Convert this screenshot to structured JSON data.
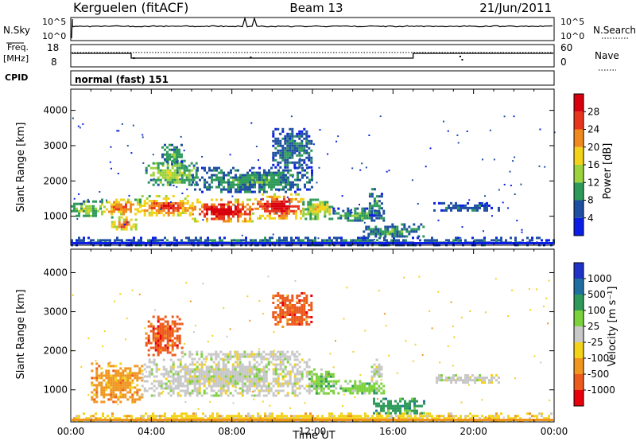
{
  "header": {
    "station": "Kerguelen (fitACF)",
    "beam": "Beam 13",
    "date": "21/Jun/2011"
  },
  "noise_panel": {
    "left_label": "N.Sky",
    "right_label": "N.Search",
    "left_ticks": [
      "10^5",
      "10^0"
    ],
    "right_ticks": [
      "10^5",
      "10^0"
    ]
  },
  "freq_panel": {
    "left_label_1": "Freq.",
    "left_label_2": "[MHz]",
    "right_label": "Nave",
    "left_ticks": [
      "18",
      "8"
    ],
    "right_ticks": [
      "60",
      "0"
    ]
  },
  "cpid_panel": {
    "label": "CPID",
    "text": "normal (fast) 151"
  },
  "chart_data": [
    {
      "type": "heatmap",
      "name": "power-rti",
      "ylabel": "Slant Range [km]",
      "xlabel": "",
      "yticks": [
        1000,
        2000,
        3000,
        4000
      ],
      "ylim": [
        180,
        4600
      ],
      "colorbar_label": "Power [dB]",
      "colorbar_ticks": [
        "4",
        "8",
        "12",
        "16",
        "20",
        "24",
        "28"
      ],
      "colorbar_colors": [
        "#0a1ee6",
        "#1e4fa0",
        "#2e9a5a",
        "#9cd23c",
        "#f3d21a",
        "#f08a1e",
        "#e8361e",
        "#d8000c"
      ],
      "features": [
        {
          "t0": 0.0,
          "t1": 24.0,
          "r0": 180,
          "r1": 420,
          "level": 0.25
        },
        {
          "t0": 0.0,
          "t1": 1.5,
          "r0": 1000,
          "r1": 1450,
          "level": 0.45
        },
        {
          "t0": 1.5,
          "t1": 3.5,
          "r0": 1050,
          "r1": 1500,
          "level": 0.75
        },
        {
          "t0": 2.0,
          "t1": 3.2,
          "r0": 600,
          "r1": 1000,
          "level": 0.7
        },
        {
          "t0": 3.5,
          "t1": 6.0,
          "r0": 1000,
          "r1": 1600,
          "level": 0.8
        },
        {
          "t0": 6.0,
          "t1": 9.0,
          "r0": 850,
          "r1": 1500,
          "level": 0.95
        },
        {
          "t0": 9.0,
          "t1": 11.5,
          "r0": 950,
          "r1": 1650,
          "level": 0.9
        },
        {
          "t0": 11.5,
          "t1": 13.0,
          "r0": 950,
          "r1": 1500,
          "level": 0.55
        },
        {
          "t0": 13.0,
          "t1": 15.5,
          "r0": 850,
          "r1": 1250,
          "level": 0.35
        },
        {
          "t0": 3.7,
          "t1": 6.2,
          "r0": 1900,
          "r1": 2600,
          "level": 0.45
        },
        {
          "t0": 4.5,
          "t1": 5.5,
          "r0": 2500,
          "r1": 3050,
          "level": 0.35
        },
        {
          "t0": 6.0,
          "t1": 12.0,
          "r0": 1700,
          "r1": 2400,
          "level": 0.3
        },
        {
          "t0": 10.0,
          "t1": 12.0,
          "r0": 2400,
          "r1": 3500,
          "level": 0.25
        },
        {
          "t0": 14.8,
          "t1": 15.4,
          "r0": 1000,
          "r1": 1800,
          "level": 0.3
        },
        {
          "t0": 18.0,
          "t1": 21.3,
          "r0": 1150,
          "r1": 1400,
          "level": 0.22
        },
        {
          "t0": 14.5,
          "t1": 17.5,
          "r0": 400,
          "r1": 800,
          "level": 0.3
        }
      ]
    },
    {
      "type": "heatmap",
      "name": "velocity-rti",
      "ylabel": "Slant Range [km]",
      "xlabel": "Time UT",
      "yticks": [
        1000,
        2000,
        3000,
        4000
      ],
      "ylim": [
        180,
        4600
      ],
      "xticks": [
        "00:00",
        "04:00",
        "08:00",
        "12:00",
        "16:00",
        "20:00",
        "00:00"
      ],
      "colorbar_label": "Velocity [m s⁻¹]",
      "colorbar_ticks": [
        "1000",
        "500",
        "100",
        "25",
        "-25",
        "-100",
        "-500",
        "-1000"
      ],
      "colorbar_colors": [
        "#1e32c8",
        "#1e6ea0",
        "#2e9a5a",
        "#7cd23c",
        "#c8c8c8",
        "#f3d21a",
        "#f0961e",
        "#ec5a1e",
        "#e8000c"
      ],
      "features": [
        {
          "t0": 0.0,
          "t1": 24.0,
          "r0": 180,
          "r1": 420,
          "color": 5
        },
        {
          "t0": 1.0,
          "t1": 3.5,
          "r0": 700,
          "r1": 1700,
          "color": 6
        },
        {
          "t0": 3.5,
          "t1": 12.0,
          "r0": 850,
          "r1": 1800,
          "color": 4
        },
        {
          "t0": 3.7,
          "t1": 5.5,
          "r0": 1900,
          "r1": 2900,
          "color": 7
        },
        {
          "t0": 5.5,
          "t1": 11.5,
          "r0": 1800,
          "r1": 2000,
          "color": 4
        },
        {
          "t0": 11.8,
          "t1": 13.0,
          "r0": 900,
          "r1": 1550,
          "color": 3
        },
        {
          "t0": 13.0,
          "t1": 15.5,
          "r0": 900,
          "r1": 1250,
          "color": 3
        },
        {
          "t0": 14.9,
          "t1": 15.4,
          "r0": 1200,
          "r1": 1800,
          "color": 4
        },
        {
          "t0": 18.0,
          "t1": 21.3,
          "r0": 1200,
          "r1": 1400,
          "color": 4
        },
        {
          "t0": 15.0,
          "t1": 17.5,
          "r0": 400,
          "r1": 800,
          "color": 2
        },
        {
          "t0": 10.0,
          "t1": 12.0,
          "r0": 2600,
          "r1": 3500,
          "color": 7
        }
      ]
    }
  ]
}
